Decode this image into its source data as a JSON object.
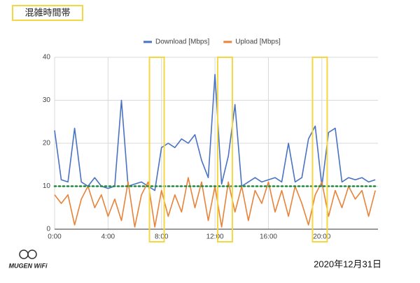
{
  "header": {
    "title": "混雑時間帯"
  },
  "chart_data": {
    "type": "line",
    "x": [
      0,
      0.5,
      1,
      1.5,
      2,
      2.5,
      3,
      3.5,
      4,
      4.5,
      5,
      5.5,
      6,
      6.5,
      7,
      7.5,
      8,
      8.5,
      9,
      9.5,
      10,
      10.5,
      11,
      11.5,
      12,
      12.5,
      13,
      13.5,
      14,
      14.5,
      15,
      15.5,
      16,
      16.5,
      17,
      17.5,
      18,
      18.5,
      19,
      19.5,
      20,
      20.5,
      21,
      21.5,
      22,
      22.5,
      23,
      23.5,
      24
    ],
    "series": [
      {
        "name": "Download [Mbps]",
        "color": "#4a72c4",
        "values": [
          23,
          11.5,
          11,
          23.5,
          11,
          10,
          12,
          10,
          9.5,
          10,
          30,
          10,
          10.5,
          11,
          10,
          9,
          19,
          20,
          19,
          21,
          20,
          22,
          16,
          12,
          36,
          10.5,
          17,
          29,
          10,
          11,
          12,
          11,
          11.5,
          12,
          11,
          20,
          11,
          12,
          21,
          24,
          10,
          22.5,
          23.5,
          11,
          12,
          11.5,
          12,
          11,
          11.5
        ]
      },
      {
        "name": "Upload [Mbps]",
        "color": "#e8833a",
        "values": [
          8,
          6,
          8,
          1,
          7,
          10,
          5,
          8,
          3,
          7,
          2,
          11,
          0.5,
          8,
          11,
          0.5,
          9,
          3,
          8,
          4,
          12,
          5,
          11,
          2,
          10,
          0.5,
          11,
          4,
          10,
          2,
          9,
          6,
          11,
          4,
          9,
          3,
          10,
          6,
          1,
          8,
          11,
          3,
          9,
          5,
          10,
          7,
          9,
          3,
          9
        ]
      }
    ],
    "xlim": [
      0,
      24.2
    ],
    "xticks": [
      {
        "value": 0,
        "label": "0:00"
      },
      {
        "value": 4,
        "label": "4:00"
      },
      {
        "value": 8,
        "label": "8:00"
      },
      {
        "value": 12,
        "label": "12:00"
      },
      {
        "value": 16,
        "label": "16:00"
      },
      {
        "value": 20,
        "label": "20:00"
      }
    ],
    "ylim": [
      0,
      40
    ],
    "yticks": [
      0,
      10,
      20,
      30,
      40
    ],
    "grid": true,
    "legend": "top",
    "reference_line": {
      "value": 10,
      "color": "#1e8a3c"
    },
    "highlights": {
      "color": "#f5d742",
      "ranges": [
        [
          7.1,
          8.2
        ],
        [
          12.2,
          13.3
        ],
        [
          19.3,
          20.4
        ]
      ]
    }
  },
  "footer": {
    "logo": "MUGEN WiFi",
    "date": "2020年12月31日"
  }
}
